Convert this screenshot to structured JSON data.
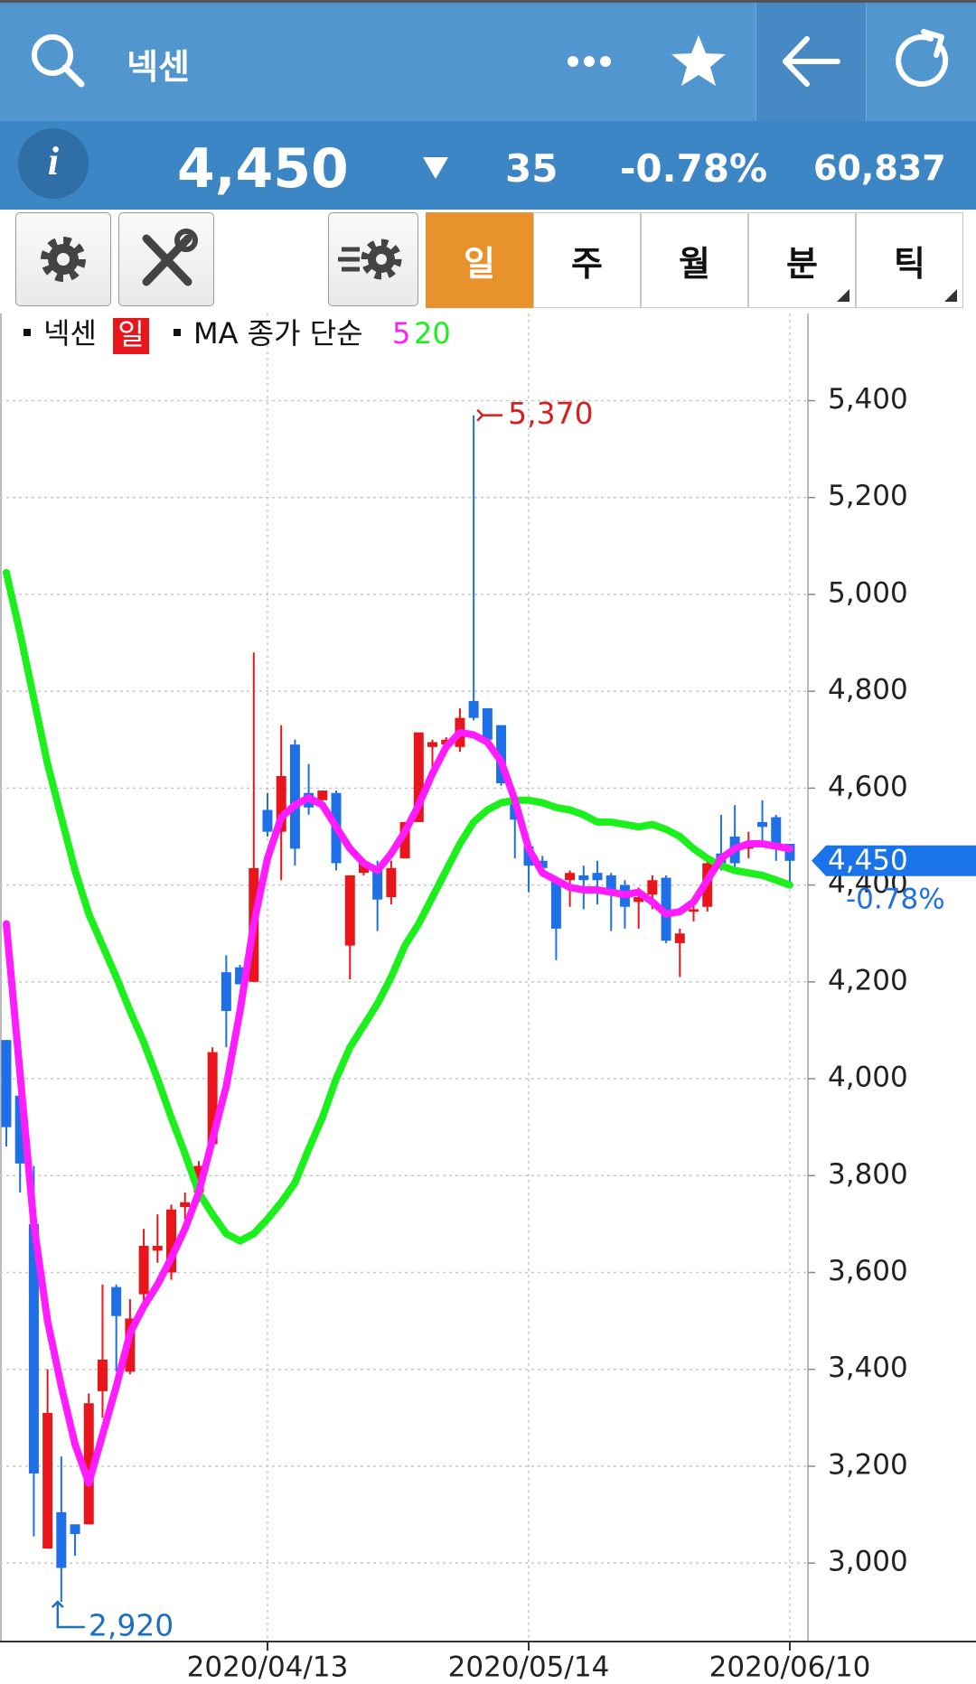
{
  "header": {
    "title": "넥센"
  },
  "quote": {
    "info": "i",
    "price": "4,450",
    "change": "35",
    "change_pct": "-0.78%",
    "volume": "60,837"
  },
  "tabs": [
    "일",
    "주",
    "월",
    "분",
    "틱"
  ],
  "chart_data": {
    "type": "candlestick",
    "name": "넥센",
    "period": "일",
    "ma_label": "MA 종가 단순",
    "categories": [
      null,
      null,
      null,
      null,
      null,
      null,
      null,
      null,
      null,
      null,
      null,
      null,
      null,
      null,
      null,
      null,
      null,
      null,
      null,
      "2020/04/13",
      null,
      null,
      null,
      null,
      null,
      null,
      null,
      null,
      null,
      null,
      null,
      null,
      null,
      null,
      null,
      null,
      null,
      null,
      "2020/05/14",
      null,
      null,
      null,
      null,
      null,
      null,
      null,
      null,
      null,
      null,
      null,
      null,
      null,
      null,
      null,
      null,
      null,
      null,
      "2020/06/10"
    ],
    "open": [
      4080,
      3965,
      3700,
      3030,
      3105,
      3080,
      3080,
      3355,
      3570,
      3395,
      3555,
      3645,
      3600,
      3735,
      3765,
      3865,
      4220,
      4230,
      4200,
      4555,
      4510,
      4690,
      4590,
      4575,
      4590,
      4275,
      4425,
      4435,
      4375,
      4455,
      4530,
      4685,
      4690,
      4685,
      4780,
      4765,
      4730,
      4575,
      4480,
      4450,
      4410,
      4410,
      4420,
      4425,
      4420,
      4400,
      4365,
      4380,
      4415,
      4280,
      4345,
      4355,
      4465,
      4500,
      4475,
      4530,
      4540,
      4485
    ],
    "high": [
      4080,
      3965,
      3820,
      3400,
      3220,
      3080,
      3350,
      3575,
      3575,
      3545,
      3690,
      3720,
      3740,
      3765,
      3830,
      4065,
      4255,
      4235,
      4880,
      4590,
      4730,
      4700,
      4650,
      4595,
      4595,
      4420,
      4450,
      4450,
      4450,
      4530,
      4715,
      4700,
      4705,
      4765,
      5370,
      4765,
      4730,
      4575,
      4485,
      4460,
      4410,
      4430,
      4440,
      4450,
      4425,
      4410,
      4395,
      4420,
      4420,
      4310,
      4370,
      4455,
      4545,
      4565,
      4510,
      4575,
      4545,
      4485
    ],
    "low": [
      3860,
      3765,
      3055,
      3030,
      2920,
      3015,
      3080,
      3300,
      3395,
      3390,
      3530,
      3620,
      3585,
      3710,
      3745,
      3865,
      4065,
      4195,
      4200,
      4500,
      4410,
      4440,
      4545,
      4575,
      4430,
      4205,
      4420,
      4305,
      4360,
      4455,
      4530,
      4615,
      4685,
      4675,
      4740,
      4700,
      4605,
      4455,
      4385,
      4420,
      4245,
      4355,
      4350,
      4360,
      4305,
      4310,
      4310,
      4350,
      4280,
      4210,
      4325,
      4345,
      4430,
      4430,
      4455,
      4490,
      4450,
      4400
    ],
    "close": [
      3900,
      3825,
      3185,
      3310,
      2990,
      3060,
      3330,
      3420,
      3510,
      3505,
      3655,
      3655,
      3730,
      3745,
      3820,
      4055,
      4140,
      4195,
      4435,
      4510,
      4625,
      4475,
      4560,
      4595,
      4445,
      4420,
      4445,
      4370,
      4435,
      4530,
      4715,
      4695,
      4700,
      4745,
      4745,
      4700,
      4610,
      4535,
      4440,
      4435,
      4310,
      4425,
      4410,
      4410,
      4390,
      4355,
      4375,
      4410,
      4285,
      4300,
      4350,
      4445,
      4445,
      4445,
      4480,
      4520,
      4485,
      4450
    ],
    "up_color": "#e8151b",
    "down_color": "#1f6fe6",
    "series": [
      {
        "name": "5",
        "color": "#ff1cff",
        "values": [
          4320,
          4010,
          3700,
          3500,
          3365,
          3245,
          3165,
          3265,
          3365,
          3475,
          3530,
          3575,
          3630,
          3690,
          3765,
          3875,
          3985,
          4140,
          4320,
          4455,
          4540,
          4565,
          4580,
          4565,
          4520,
          4475,
          4445,
          4430,
          4465,
          4510,
          4565,
          4630,
          4685,
          4715,
          4710,
          4695,
          4655,
          4575,
          4475,
          4425,
          4410,
          4395,
          4390,
          4390,
          4385,
          4380,
          4385,
          4365,
          4340,
          4345,
          4365,
          4410,
          4455,
          4475,
          4485,
          4485,
          4480,
          4475
        ]
      },
      {
        "name": "20",
        "color": "#1cf01c",
        "values": [
          5045,
          4920,
          4785,
          4650,
          4540,
          4430,
          4340,
          4275,
          4210,
          4140,
          4075,
          4000,
          3920,
          3845,
          3765,
          3720,
          3680,
          3665,
          3680,
          3710,
          3745,
          3785,
          3855,
          3920,
          4000,
          4065,
          4110,
          4155,
          4210,
          4275,
          4320,
          4375,
          4430,
          4485,
          4530,
          4555,
          4570,
          4575,
          4575,
          4570,
          4560,
          4555,
          4545,
          4530,
          4530,
          4525,
          4520,
          4525,
          4515,
          4500,
          4475,
          4455,
          4440,
          4430,
          4425,
          4420,
          4410,
          4400
        ]
      }
    ],
    "ylim": [
      2838,
      5580
    ],
    "yticks": [
      {
        "value": 3000,
        "label": "3,000"
      },
      {
        "value": 3200,
        "label": "3,200"
      },
      {
        "value": 3400,
        "label": "3,400"
      },
      {
        "value": 3600,
        "label": "3,600"
      },
      {
        "value": 3800,
        "label": "3,800"
      },
      {
        "value": 4000,
        "label": "4,000"
      },
      {
        "value": 4200,
        "label": "4,200"
      },
      {
        "value": 4400,
        "label": "4,400"
      },
      {
        "value": 4600,
        "label": "4,600"
      },
      {
        "value": 4800,
        "label": "4,800"
      },
      {
        "value": 5000,
        "label": "5,000"
      },
      {
        "value": 5200,
        "label": "5,200"
      },
      {
        "value": 5400,
        "label": "5,400"
      }
    ],
    "grid": true,
    "high_mark": {
      "value": 5370,
      "label": "5,370"
    },
    "low_mark": {
      "value": 2920,
      "label": "2,920"
    },
    "last": {
      "value": 4450,
      "label": "4,450"
    },
    "last_change": "-0.78%"
  }
}
